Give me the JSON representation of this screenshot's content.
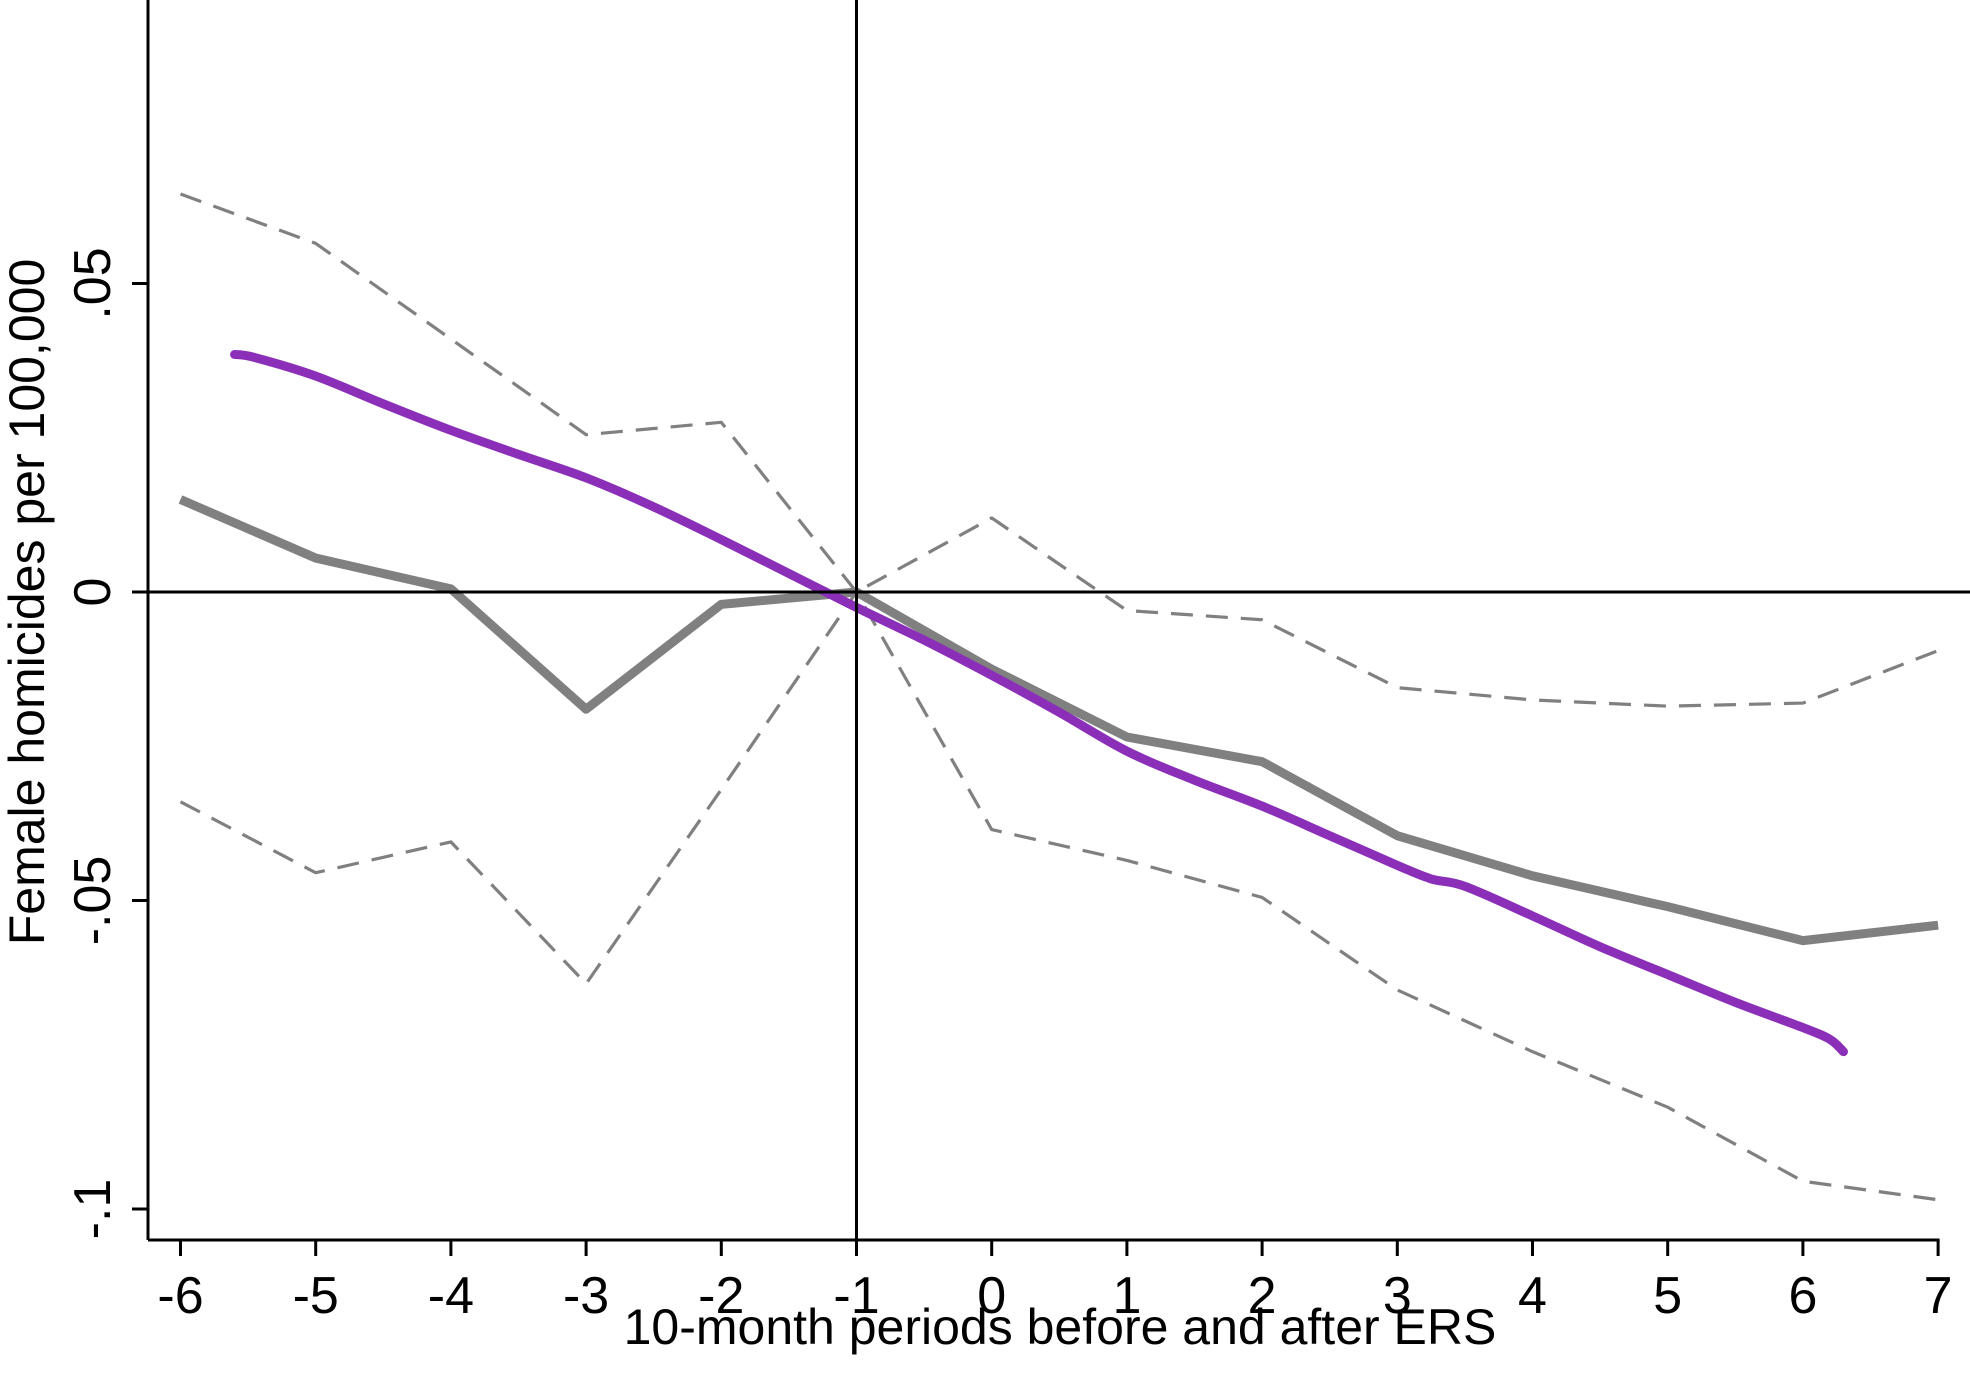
{
  "chart_data": {
    "type": "line",
    "xlabel": "10-month periods before and after ERS",
    "ylabel": "Female homicides per 100,000",
    "xlim": [
      -6.2,
      7.2
    ],
    "ylim": [
      -0.1055,
      0.096
    ],
    "x_ticks": [
      -6,
      -5,
      -4,
      -3,
      -2,
      -1,
      0,
      1,
      2,
      3,
      4,
      5,
      6,
      7
    ],
    "x_tick_labels": [
      "-6",
      "-5",
      "-4",
      "-3",
      "-2",
      "-1",
      "0",
      "1",
      "2",
      "3",
      "4",
      "5",
      "6",
      "7"
    ],
    "y_ticks": [
      0.05,
      0,
      -0.05,
      -0.1
    ],
    "y_tick_labels": [
      ".05",
      "0",
      "-.05",
      "-.1"
    ],
    "reference_lines": {
      "x": -1,
      "y": 0
    },
    "series": [
      {
        "style": "solid-thick",
        "color": "#808080",
        "x": [
          -6,
          -5,
          -4,
          -3,
          -2,
          -1,
          0,
          1,
          2,
          3,
          4,
          5,
          6,
          7
        ],
        "values": [
          0.015,
          0.0055,
          0.0005,
          -0.019,
          -0.002,
          0,
          -0.0125,
          -0.0235,
          -0.0275,
          -0.0395,
          -0.046,
          -0.051,
          -0.0565,
          -0.054
        ]
      },
      {
        "style": "dashed",
        "color": "#808080",
        "x": [
          -6,
          -5,
          -4,
          -3,
          -2,
          -1,
          0,
          1,
          2,
          3,
          4,
          5,
          6,
          7
        ],
        "values": [
          0.0645,
          0.0565,
          0.041,
          0.0255,
          0.0275,
          0,
          0.012,
          -0.003,
          -0.0045,
          -0.0155,
          -0.0175,
          -0.0185,
          -0.018,
          -0.0095
        ]
      },
      {
        "style": "dashed",
        "color": "#808080",
        "x": [
          -6,
          -5,
          -4,
          -3,
          -2,
          -1,
          0,
          1,
          2,
          3,
          4,
          5,
          6,
          7
        ],
        "values": [
          -0.034,
          -0.0455,
          -0.0405,
          -0.0635,
          -0.032,
          0,
          -0.0385,
          -0.0435,
          -0.0495,
          -0.0645,
          -0.0745,
          -0.0835,
          -0.0955,
          -0.0985
        ]
      },
      {
        "style": "smooth-fit",
        "color": "#8B2FB8",
        "x": [
          -5.6,
          -5.45,
          -5,
          -4.5,
          -4,
          -3.5,
          -3,
          -2.5,
          -2,
          -1.5,
          -1,
          -0.5,
          0,
          0.5,
          1,
          1.5,
          2,
          2.5,
          3,
          3.25,
          3.5,
          4,
          4.5,
          5,
          5.5,
          6,
          6.2,
          6.3
        ],
        "values": [
          0.0385,
          0.038,
          0.035,
          0.0305,
          0.0262,
          0.0223,
          0.0185,
          0.0138,
          0.0085,
          0.003,
          -0.0025,
          -0.0078,
          -0.0135,
          -0.0195,
          -0.0258,
          -0.0305,
          -0.0347,
          -0.0395,
          -0.0443,
          -0.0465,
          -0.0477,
          -0.0525,
          -0.0575,
          -0.062,
          -0.0665,
          -0.0706,
          -0.0725,
          -0.0745
        ]
      }
    ]
  }
}
